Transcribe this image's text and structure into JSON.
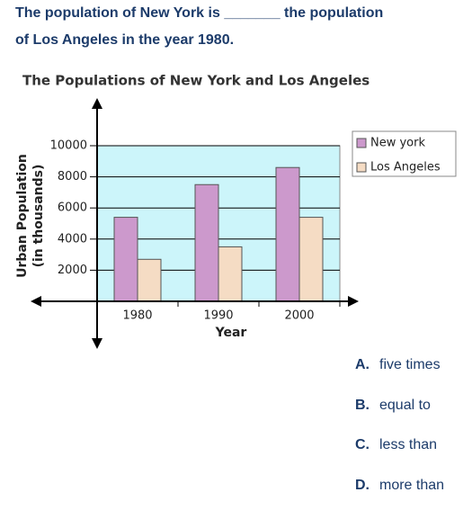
{
  "question": {
    "line1": "The population of New York is _______ the population",
    "line2": "of Los Angeles in the year 1980."
  },
  "chart_data": {
    "type": "bar",
    "title": "The Populations of New York and Los Angeles",
    "x_label": "Year",
    "y_label": [
      "Urban Population",
      "(in thousands)"
    ],
    "categories": [
      "1980",
      "1990",
      "2000"
    ],
    "series": [
      {
        "name": "New york",
        "color": "#cc99cc",
        "values": [
          5400,
          7500,
          8600
        ]
      },
      {
        "name": "Los Angeles",
        "color": "#f5dcc4",
        "values": [
          2700,
          3500,
          5400
        ]
      }
    ],
    "ylim": [
      0,
      10000
    ],
    "yticks": [
      2000,
      4000,
      6000,
      8000,
      10000
    ],
    "grid": true,
    "background": "#ccf5fa",
    "legend": "right"
  },
  "options": [
    {
      "letter": "A.",
      "text": "five times"
    },
    {
      "letter": "B.",
      "text": "equal to"
    },
    {
      "letter": "C.",
      "text": "less than"
    },
    {
      "letter": "D.",
      "text": "more than"
    }
  ]
}
